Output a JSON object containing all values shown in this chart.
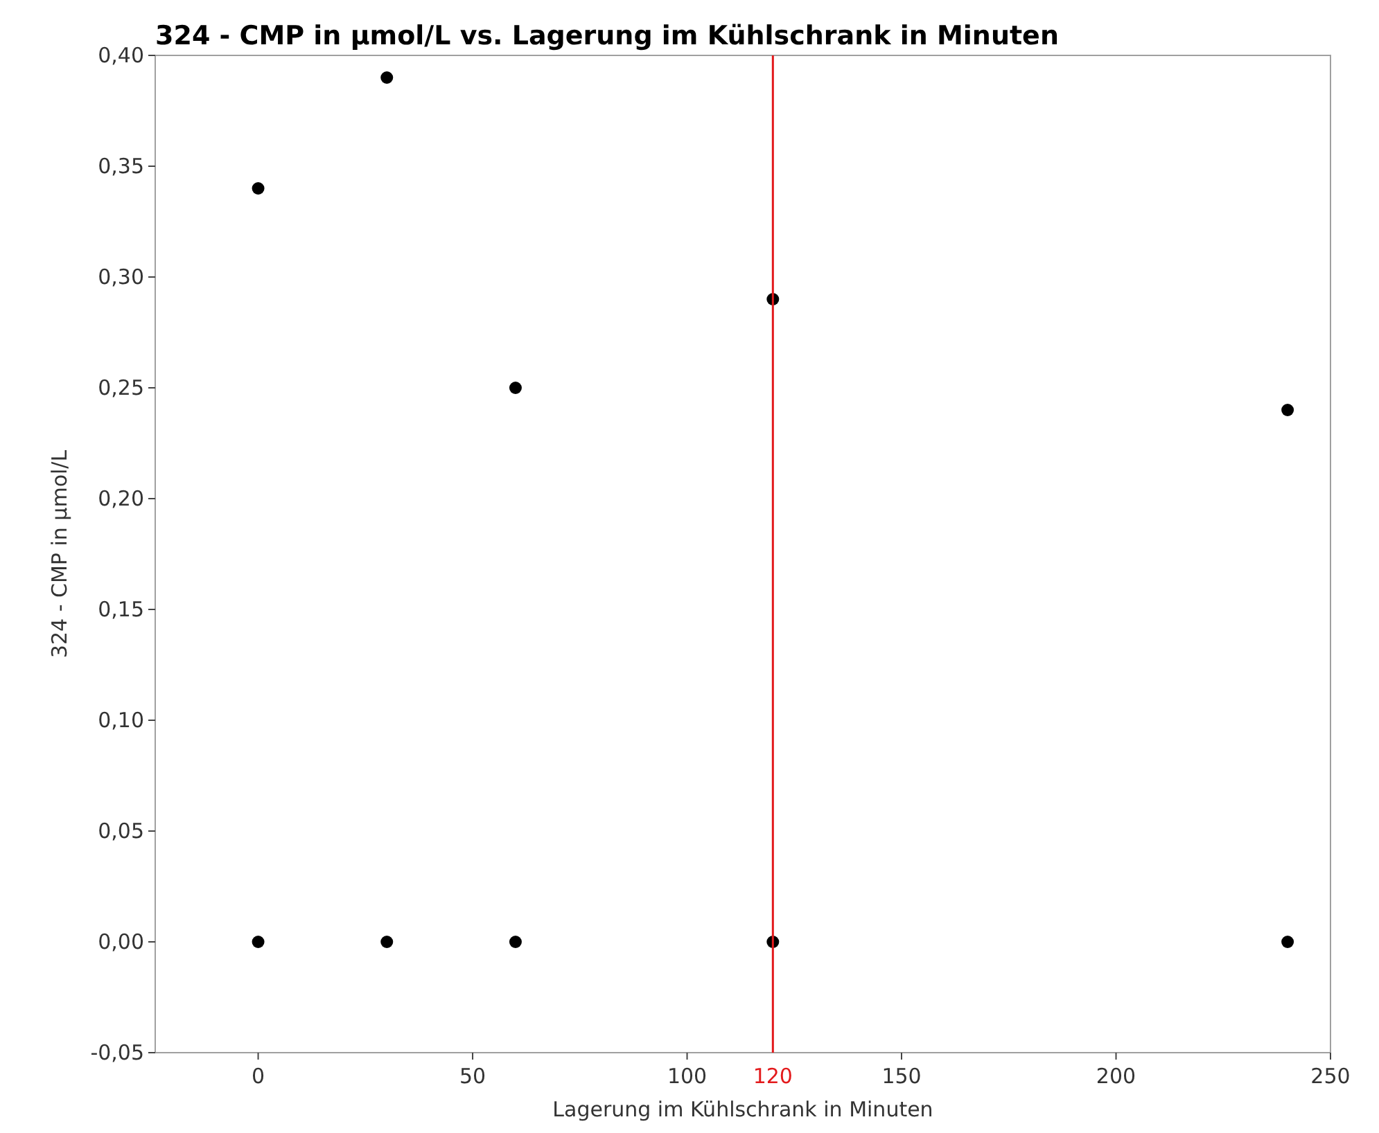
{
  "chart_data": {
    "type": "scatter",
    "title": "324 - CMP in µmol/L vs. Lagerung im Kühlschrank in Minuten",
    "xlabel": "Lagerung im Kühlschrank in Minuten",
    "ylabel": "324 - CMP in µmol/L",
    "x": [
      0,
      30,
      60,
      120,
      240,
      0,
      30,
      60,
      120,
      240
    ],
    "series": [
      {
        "color": "#000000",
        "values": [
          0.34,
          0.39,
          0.25,
          0.29,
          0.24,
          0,
          0,
          0,
          0,
          0
        ]
      }
    ],
    "xlim": [
      -24,
      250
    ],
    "xticks": [
      0,
      50,
      100,
      150,
      200,
      250
    ],
    "ylim": [
      -0.05,
      0.4
    ],
    "yticks": [
      {
        "value": -0.05,
        "label": "-0,05"
      },
      {
        "value": 0,
        "label": "0,00"
      },
      {
        "value": 0.05,
        "label": "0,05"
      },
      {
        "value": 0.1,
        "label": "0,10"
      },
      {
        "value": 0.15,
        "label": "0,15"
      },
      {
        "value": 0.2,
        "label": "0,20"
      },
      {
        "value": 0.25,
        "label": "0,25"
      },
      {
        "value": 0.3,
        "label": "0,30"
      },
      {
        "value": 0.35,
        "label": "0,35"
      },
      {
        "value": 0.4,
        "label": "0,40"
      }
    ],
    "ref_lines": [
      {
        "axis": "x",
        "value": 120,
        "label": "120",
        "color": "#e31a1c"
      }
    ],
    "marker": "circle",
    "grid": false
  }
}
